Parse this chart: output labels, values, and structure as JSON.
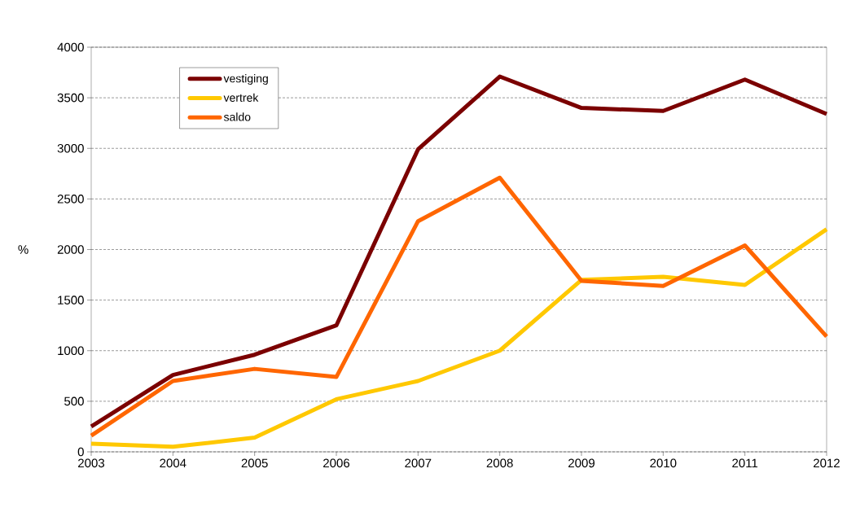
{
  "chart_data": {
    "type": "line",
    "ylabel": "%",
    "categories": [
      "2003",
      "2004",
      "2005",
      "2006",
      "2007",
      "2008",
      "2009",
      "2010",
      "2011",
      "2012"
    ],
    "series": [
      {
        "name": "vestiging",
        "color": "#7b0000",
        "values": [
          250,
          760,
          960,
          1250,
          2990,
          3710,
          3400,
          3370,
          3680,
          3340
        ]
      },
      {
        "name": "vertrek",
        "color": "#ffc800",
        "values": [
          80,
          50,
          140,
          520,
          700,
          1000,
          1700,
          1730,
          1650,
          2200
        ]
      },
      {
        "name": "saldo",
        "color": "#ff6600",
        "values": [
          160,
          700,
          820,
          740,
          2280,
          2710,
          1690,
          1640,
          2040,
          1140
        ]
      }
    ],
    "ylim": [
      0,
      4000
    ],
    "yticks": [
      0,
      500,
      1000,
      1500,
      2000,
      2500,
      3000,
      3500,
      4000
    ],
    "grid": "y",
    "legend": "top left",
    "marker": "none",
    "line_style": "solid"
  }
}
